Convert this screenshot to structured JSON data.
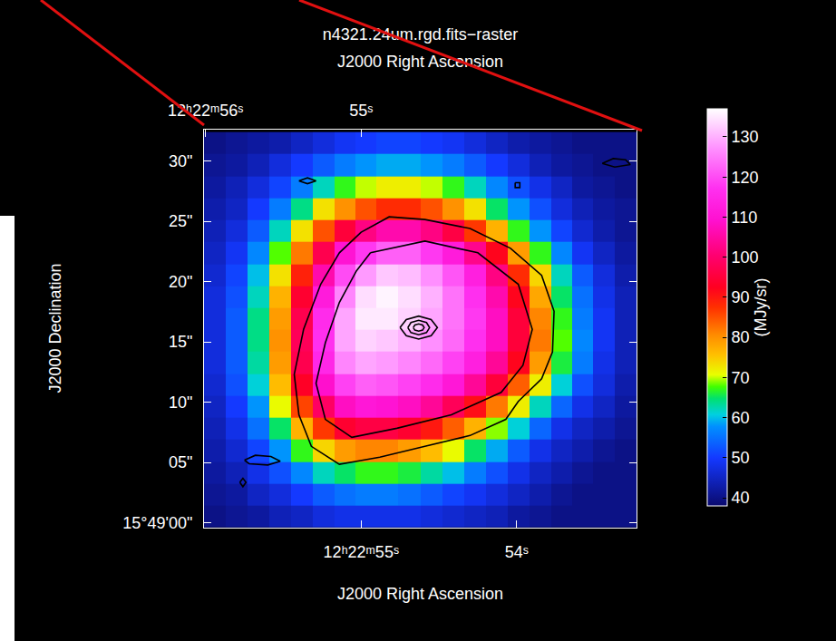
{
  "chart_data": {
    "type": "heatmap",
    "title": "n4321.24um.rgd.fits−raster",
    "x_label": "J2000 Right Ascension",
    "x2_label": "J2000 Right Ascension",
    "y_label": "J2000 Declination",
    "xlim": [
      56.01,
      53.23
    ],
    "xticks": [
      {
        "value": 55,
        "label": "12ʰ22ᵐ55ˢ"
      },
      {
        "value": 54,
        "label": "54ˢ"
      }
    ],
    "x2ticks": [
      {
        "value": 56,
        "label": "12ʰ22ᵐ56ˢ"
      },
      {
        "value": 55,
        "label": "55ˢ"
      }
    ],
    "ylim": [
      -0.4,
      32.6
    ],
    "yticks": [
      {
        "value": 0,
        "label": "15°49'00\""
      },
      {
        "value": 5,
        "label": "05\""
      },
      {
        "value": 10,
        "label": "10\""
      },
      {
        "value": 15,
        "label": "15\""
      },
      {
        "value": 20,
        "label": "20\""
      },
      {
        "value": 25,
        "label": "25\""
      },
      {
        "value": 30,
        "label": "30\""
      }
    ],
    "cells": {
      "x": [
        55.94,
        55.8,
        55.66,
        55.52,
        55.38,
        55.24,
        55.1,
        54.97,
        54.83,
        54.69,
        54.55,
        54.41,
        54.27,
        54.13,
        53.99,
        53.85,
        53.71,
        53.58,
        53.44,
        53.3
      ],
      "y": [
        0.5,
        2.3,
        4.1,
        6.0,
        7.8,
        9.6,
        11.4,
        13.3,
        15.1,
        16.9,
        18.7,
        20.5,
        22.4,
        24.2,
        26.0,
        27.8,
        29.7,
        31.5
      ],
      "z": [
        [
          40,
          41,
          42,
          44,
          45,
          47,
          48,
          48,
          48,
          48,
          47,
          46,
          45,
          44,
          42,
          41,
          40,
          40,
          40,
          40
        ],
        [
          41,
          42,
          45,
          47,
          50,
          53,
          55,
          56,
          56,
          55,
          53,
          51,
          49,
          47,
          45,
          43,
          41,
          40,
          40,
          40
        ],
        [
          42,
          44,
          48,
          52,
          57,
          62,
          65,
          67,
          67,
          66,
          63,
          60,
          56,
          52,
          48,
          45,
          43,
          41,
          40,
          40
        ],
        [
          43,
          46,
          51,
          58,
          67,
          74,
          79,
          81,
          81,
          79,
          76,
          71,
          65,
          59,
          53,
          48,
          45,
          43,
          41,
          40
        ],
        [
          44,
          48,
          55,
          65,
          77,
          87,
          94,
          96,
          96,
          94,
          90,
          84,
          77,
          69,
          61,
          54,
          48,
          45,
          43,
          41
        ],
        [
          45,
          50,
          58,
          71,
          86,
          99,
          108,
          111,
          110,
          108,
          104,
          98,
          91,
          82,
          72,
          62,
          54,
          48,
          45,
          42
        ],
        [
          46,
          52,
          61,
          76,
          93,
          109,
          119,
          122,
          121,
          119,
          116,
          111,
          104,
          95,
          84,
          72,
          61,
          52,
          47,
          43
        ],
        [
          47,
          53,
          63,
          79,
          97,
          115,
          126,
          129,
          128,
          126,
          123,
          119,
          113,
          104,
          92,
          79,
          66,
          56,
          48,
          44
        ],
        [
          47,
          53,
          64,
          80,
          98,
          117,
          129,
          133,
          132,
          130,
          127,
          123,
          117,
          108,
          95,
          82,
          68,
          57,
          49,
          44
        ],
        [
          47,
          53,
          64,
          79,
          97,
          116,
          129,
          135,
          135,
          133,
          129,
          124,
          118,
          108,
          95,
          81,
          67,
          56,
          49,
          44
        ],
        [
          47,
          52,
          62,
          77,
          94,
          112,
          126,
          134,
          136,
          134,
          130,
          124,
          117,
          106,
          92,
          78,
          65,
          55,
          48,
          44
        ],
        [
          46,
          51,
          60,
          73,
          89,
          106,
          120,
          128,
          132,
          131,
          127,
          121,
          113,
          102,
          88,
          74,
          62,
          53,
          47,
          43
        ],
        [
          45,
          49,
          57,
          68,
          82,
          97,
          110,
          118,
          122,
          122,
          118,
          112,
          103,
          92,
          79,
          67,
          57,
          49,
          45,
          42
        ],
        [
          44,
          47,
          53,
          62,
          73,
          85,
          95,
          102,
          106,
          106,
          102,
          96,
          87,
          77,
          67,
          58,
          51,
          46,
          43,
          41
        ],
        [
          43,
          45,
          50,
          56,
          64,
          73,
          80,
          85,
          88,
          88,
          85,
          80,
          73,
          65,
          58,
          52,
          47,
          44,
          42,
          41
        ],
        [
          42,
          44,
          47,
          51,
          56,
          62,
          67,
          70,
          72,
          72,
          70,
          67,
          62,
          57,
          52,
          48,
          45,
          42,
          41,
          40
        ],
        [
          41,
          42,
          44,
          47,
          50,
          53,
          56,
          58,
          59,
          59,
          58,
          56,
          53,
          50,
          47,
          44,
          42,
          41,
          40,
          40
        ],
        [
          40,
          41,
          42,
          43,
          45,
          47,
          49,
          50,
          51,
          51,
          50,
          49,
          47,
          45,
          43,
          42,
          41,
          40,
          40,
          40
        ]
      ]
    },
    "colorbar": {
      "label": "(MJy/sr)",
      "range": [
        38,
        137
      ],
      "ticks": [
        40,
        50,
        60,
        70,
        80,
        90,
        100,
        110,
        120,
        130
      ]
    },
    "contours": {
      "color": "#000000",
      "lines": [
        {
          "x": [
            55.0,
            54.82,
            54.59,
            54.3,
            54.04,
            53.84,
            53.76,
            53.77,
            53.84,
            53.99,
            54.07,
            54.3,
            54.59,
            54.88,
            55.14,
            55.32,
            55.4,
            55.43,
            55.37,
            55.26,
            55.14,
            55.0
          ],
          "y": [
            24.1,
            25.37,
            25.15,
            24.4,
            22.76,
            20.52,
            17.54,
            14.18,
            11.94,
            10.07,
            8.58,
            7.24,
            6.34,
            5.45,
            4.85,
            6.34,
            8.96,
            12.31,
            16.04,
            19.78,
            22.39,
            24.1
          ]
        },
        {
          "x": [
            54.94,
            54.59,
            54.25,
            53.99,
            53.9,
            53.96,
            54.1,
            54.42,
            54.77,
            55.06,
            55.23,
            55.29,
            55.23,
            55.14,
            55.03,
            54.94
          ],
          "y": [
            22.39,
            23.36,
            22.39,
            19.78,
            16.04,
            13.06,
            10.82,
            8.96,
            7.84,
            7.09,
            8.58,
            11.57,
            14.93,
            18.28,
            20.9,
            22.39
          ]
        },
        {
          "x": [
            54.75,
            54.71,
            54.63,
            54.55,
            54.51,
            54.55,
            54.63,
            54.71,
            54.75
          ],
          "y": [
            16.19,
            16.86,
            17.14,
            16.86,
            16.19,
            15.52,
            15.24,
            15.52,
            16.19
          ]
        },
        {
          "x": [
            54.7,
            54.68,
            54.63,
            54.58,
            54.56,
            54.58,
            54.63,
            54.68,
            54.7
          ],
          "y": [
            16.19,
            16.61,
            16.79,
            16.61,
            16.19,
            15.77,
            15.59,
            15.77,
            16.19
          ]
        },
        {
          "x": [
            54.665,
            54.655,
            54.63,
            54.605,
            54.595,
            54.605,
            54.63,
            54.655,
            54.665
          ],
          "y": [
            16.19,
            16.4,
            16.49,
            16.4,
            16.19,
            15.98,
            15.89,
            15.98,
            16.19
          ]
        },
        {
          "x": [
            55.4,
            55.345,
            55.29,
            55.345,
            55.4
          ],
          "y": [
            28.36,
            28.6,
            28.36,
            28.12,
            28.36
          ]
        },
        {
          "x": [
            55.75,
            55.68,
            55.58,
            55.52,
            55.6,
            55.72,
            55.75
          ],
          "y": [
            5.2,
            5.6,
            5.5,
            5.1,
            4.8,
            4.9,
            5.2
          ]
        },
        {
          "x": [
            53.45,
            53.38,
            53.3,
            53.27,
            53.37,
            53.45
          ],
          "y": [
            29.8,
            30.2,
            30.1,
            29.7,
            29.5,
            29.8
          ]
        },
        {
          "x": [
            54.01,
            53.98,
            53.98,
            54.01,
            54.01
          ],
          "y": [
            28.2,
            28.2,
            27.8,
            27.8,
            28.2
          ]
        },
        {
          "x": [
            55.78,
            55.76,
            55.74,
            55.76,
            55.78
          ],
          "y": [
            3.36,
            3.7,
            3.36,
            3.0,
            3.36
          ]
        }
      ]
    }
  }
}
